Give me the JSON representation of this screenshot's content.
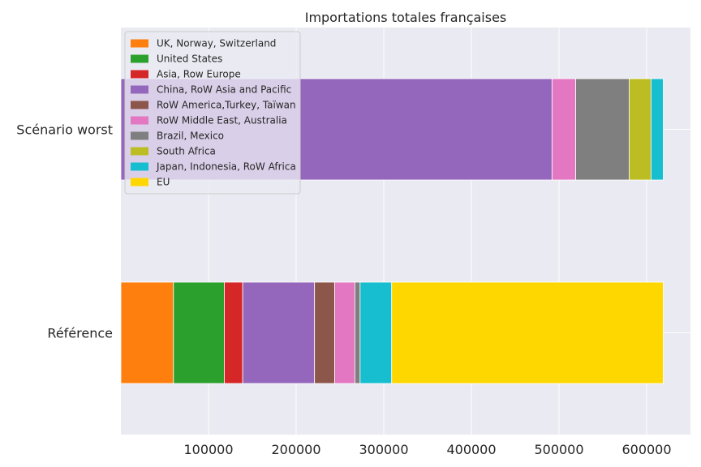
{
  "chart_data": {
    "type": "bar",
    "orientation": "horizontal",
    "stacked": true,
    "title": "Importations totales françaises",
    "xlabel": "",
    "ylabel": "",
    "categories": [
      "Référence",
      "Scénario worst"
    ],
    "xlim": [
      0,
      650000
    ],
    "xticks": [
      100000,
      200000,
      300000,
      400000,
      500000,
      600000
    ],
    "grid": true,
    "legend_position": "top-left",
    "series": [
      {
        "name": "UK, Norway, Switzerland",
        "color": "#ff7f0e",
        "values": [
          60000,
          0
        ]
      },
      {
        "name": "United States",
        "color": "#2ca02c",
        "values": [
          58000,
          0
        ]
      },
      {
        "name": "Asia, Row Europe",
        "color": "#d62728",
        "values": [
          21000,
          0
        ]
      },
      {
        "name": "China, RoW Asia and Pacific",
        "color": "#9467bd",
        "values": [
          82000,
          492000
        ]
      },
      {
        "name": "RoW America,Turkey, Taïwan",
        "color": "#8c564b",
        "values": [
          23000,
          0
        ]
      },
      {
        "name": "RoW Middle East, Australia",
        "color": "#e377c2",
        "values": [
          23000,
          27000
        ]
      },
      {
        "name": "Brazil, Mexico",
        "color": "#7f7f7f",
        "values": [
          6000,
          61000
        ]
      },
      {
        "name": "South Africa",
        "color": "#bcbd22",
        "values": [
          0,
          25000
        ]
      },
      {
        "name": "Japan, Indonesia, RoW Africa",
        "color": "#17becf",
        "values": [
          36000,
          14000
        ]
      },
      {
        "name": "EU",
        "color": "#ffd700",
        "values": [
          310000,
          0
        ]
      }
    ]
  }
}
